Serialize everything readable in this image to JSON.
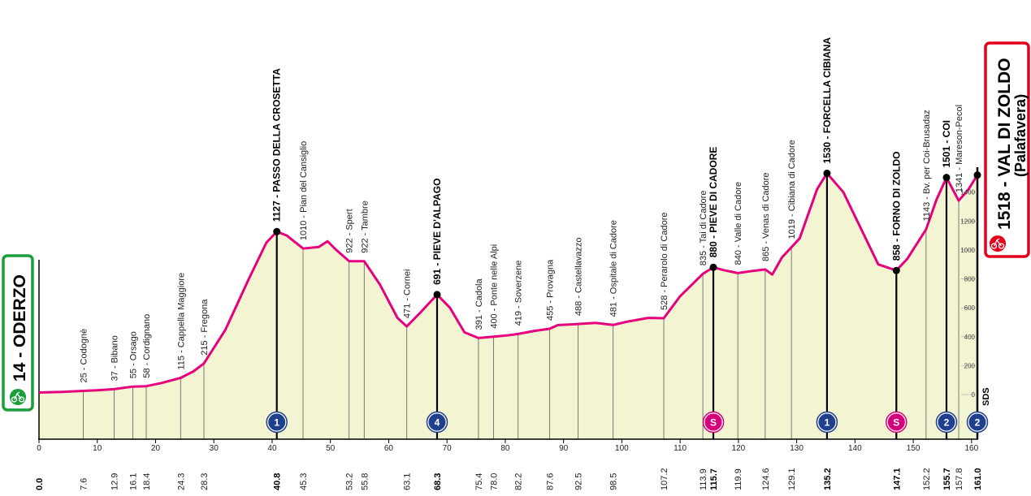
{
  "colors": {
    "profile_line": "#e6007e",
    "profile_fill": "#f3f5d2",
    "start_border": "#1a9e3a",
    "finish_border": "#e2001a",
    "kom_badge": "#1f3f8f",
    "sprint_badge": "#d6007a",
    "axis": "#000000"
  },
  "chart_data": {
    "type": "area",
    "xlabel": "",
    "ylabel": "",
    "xlim": [
      0,
      161
    ],
    "ylim": [
      -150,
      1650
    ],
    "x_ticks": [
      0,
      10,
      20,
      30,
      40,
      50,
      60,
      70,
      80,
      90,
      100,
      110,
      120,
      130,
      140,
      150,
      160
    ],
    "alt_ticks": [
      0,
      200,
      400,
      600,
      800,
      1000,
      1200,
      1400
    ],
    "profile": [
      {
        "x": 0,
        "y": 14
      },
      {
        "x": 4,
        "y": 18
      },
      {
        "x": 7.6,
        "y": 25
      },
      {
        "x": 10,
        "y": 30
      },
      {
        "x": 12.9,
        "y": 37
      },
      {
        "x": 16.1,
        "y": 55
      },
      {
        "x": 18.4,
        "y": 58
      },
      {
        "x": 21,
        "y": 80
      },
      {
        "x": 24.3,
        "y": 115
      },
      {
        "x": 26.5,
        "y": 160
      },
      {
        "x": 28.3,
        "y": 215
      },
      {
        "x": 32,
        "y": 450
      },
      {
        "x": 36,
        "y": 800
      },
      {
        "x": 39,
        "y": 1050
      },
      {
        "x": 40.8,
        "y": 1127
      },
      {
        "x": 42.5,
        "y": 1100
      },
      {
        "x": 45.3,
        "y": 1010
      },
      {
        "x": 48,
        "y": 1020
      },
      {
        "x": 49.5,
        "y": 1060
      },
      {
        "x": 51,
        "y": 1000
      },
      {
        "x": 53.2,
        "y": 922
      },
      {
        "x": 55.8,
        "y": 922
      },
      {
        "x": 58.5,
        "y": 760
      },
      {
        "x": 61.5,
        "y": 530
      },
      {
        "x": 63.1,
        "y": 471
      },
      {
        "x": 65.5,
        "y": 570
      },
      {
        "x": 68.3,
        "y": 691
      },
      {
        "x": 70.5,
        "y": 600
      },
      {
        "x": 73,
        "y": 430
      },
      {
        "x": 75.4,
        "y": 391
      },
      {
        "x": 78,
        "y": 400
      },
      {
        "x": 80.5,
        "y": 410
      },
      {
        "x": 82.2,
        "y": 419
      },
      {
        "x": 85,
        "y": 440
      },
      {
        "x": 87.6,
        "y": 455
      },
      {
        "x": 89,
        "y": 480
      },
      {
        "x": 92.5,
        "y": 488
      },
      {
        "x": 95.5,
        "y": 495
      },
      {
        "x": 98.5,
        "y": 481
      },
      {
        "x": 101,
        "y": 505
      },
      {
        "x": 104.5,
        "y": 530
      },
      {
        "x": 107.2,
        "y": 528
      },
      {
        "x": 110,
        "y": 680
      },
      {
        "x": 113.9,
        "y": 835
      },
      {
        "x": 115.7,
        "y": 880
      },
      {
        "x": 117.5,
        "y": 860
      },
      {
        "x": 119.9,
        "y": 840
      },
      {
        "x": 122.5,
        "y": 855
      },
      {
        "x": 124.6,
        "y": 865
      },
      {
        "x": 125.8,
        "y": 830
      },
      {
        "x": 127.5,
        "y": 950
      },
      {
        "x": 129.1,
        "y": 1019
      },
      {
        "x": 130.5,
        "y": 1080
      },
      {
        "x": 133.5,
        "y": 1420
      },
      {
        "x": 135.2,
        "y": 1530
      },
      {
        "x": 138,
        "y": 1400
      },
      {
        "x": 141,
        "y": 1150
      },
      {
        "x": 144,
        "y": 900
      },
      {
        "x": 147.1,
        "y": 858
      },
      {
        "x": 149,
        "y": 940
      },
      {
        "x": 152.2,
        "y": 1143
      },
      {
        "x": 154,
        "y": 1350
      },
      {
        "x": 155.7,
        "y": 1501
      },
      {
        "x": 157.8,
        "y": 1341
      },
      {
        "x": 159.5,
        "y": 1420
      },
      {
        "x": 161,
        "y": 1518
      }
    ],
    "waypoints": [
      {
        "km": "7.6",
        "x": 7.6,
        "y": 25,
        "label": "25 - Codognè",
        "major": false
      },
      {
        "km": "12.9",
        "x": 12.9,
        "y": 37,
        "label": "37 - Bibano",
        "major": false
      },
      {
        "km": "16.1",
        "x": 16.1,
        "y": 55,
        "label": "55 - Orsago",
        "major": false
      },
      {
        "km": "18.4",
        "x": 18.4,
        "y": 58,
        "label": "58 - Cordignano",
        "major": false
      },
      {
        "km": "24.3",
        "x": 24.3,
        "y": 115,
        "label": "115 - Cappella Maggiore",
        "major": false
      },
      {
        "km": "28.3",
        "x": 28.3,
        "y": 215,
        "label": "215 - Fregona",
        "major": false
      },
      {
        "km": "40.8",
        "x": 40.8,
        "y": 1127,
        "label": "1127 - PASSO DELLA CROSETTA",
        "major": true
      },
      {
        "km": "45.3",
        "x": 45.3,
        "y": 1010,
        "label": "1010 - Pian del Cansiglio",
        "major": false
      },
      {
        "km": "53.2",
        "x": 53.2,
        "y": 922,
        "label": "922 - Spert",
        "major": false
      },
      {
        "km": "55.8",
        "x": 55.8,
        "y": 922,
        "label": "922 - Tambre",
        "major": false
      },
      {
        "km": "63.1",
        "x": 63.1,
        "y": 471,
        "label": "471 - Cornei",
        "major": false
      },
      {
        "km": "68.3",
        "x": 68.3,
        "y": 691,
        "label": "691 - PIEVE D'ALPAGO",
        "major": true
      },
      {
        "km": "75.4",
        "x": 75.4,
        "y": 391,
        "label": "391 - Cadola",
        "major": false
      },
      {
        "km": "78.0",
        "x": 78.0,
        "y": 400,
        "label": "400 - Ponte nelle Alpi",
        "major": false
      },
      {
        "km": "82.2",
        "x": 82.2,
        "y": 419,
        "label": "419 - Soverzene",
        "major": false
      },
      {
        "km": "87.6",
        "x": 87.6,
        "y": 455,
        "label": "455 - Provagna",
        "major": false
      },
      {
        "km": "92.5",
        "x": 92.5,
        "y": 488,
        "label": "488 - Castellavazzo",
        "major": false
      },
      {
        "km": "98.5",
        "x": 98.5,
        "y": 481,
        "label": "481 - Ospitale di Cadore",
        "major": false
      },
      {
        "km": "107.2",
        "x": 107.2,
        "y": 528,
        "label": "528 - Perarolo di Cadore",
        "major": false
      },
      {
        "km": "113.9",
        "x": 113.9,
        "y": 835,
        "label": "835 - Tai di Cadore",
        "major": false
      },
      {
        "km": "115.7",
        "x": 115.7,
        "y": 880,
        "label": "880 - PIEVE DI CADORE",
        "major": true
      },
      {
        "km": "119.9",
        "x": 119.9,
        "y": 840,
        "label": "840 - Valle di Cadore",
        "major": false
      },
      {
        "km": "124.6",
        "x": 124.6,
        "y": 865,
        "label": "865 - Venas di Cadore",
        "major": false
      },
      {
        "km": "129.1",
        "x": 129.1,
        "y": 1019,
        "label": "1019 - Cibiana di Cadore",
        "major": false
      },
      {
        "km": "135.2",
        "x": 135.2,
        "y": 1530,
        "label": "1530 - FORCELLA CIBIANA",
        "major": true
      },
      {
        "km": "147.1",
        "x": 147.1,
        "y": 858,
        "label": "858 - FORNO DI ZOLDO",
        "major": true
      },
      {
        "km": "152.2",
        "x": 152.2,
        "y": 1143,
        "label": "1143 - Bv. per Coi-Brusadaz",
        "major": false
      },
      {
        "km": "155.7",
        "x": 155.7,
        "y": 1501,
        "label": "1501 - COI",
        "major": true
      },
      {
        "km": "157.8",
        "x": 157.8,
        "y": 1341,
        "label": "1341 - Mareson-Pecol",
        "major": false
      }
    ],
    "markers": [
      {
        "x": 40.8,
        "kind": "kom",
        "text": "1"
      },
      {
        "x": 68.3,
        "kind": "kom",
        "text": "4"
      },
      {
        "x": 115.7,
        "kind": "sprint",
        "text": "S"
      },
      {
        "x": 135.2,
        "kind": "kom",
        "text": "1"
      },
      {
        "x": 147.1,
        "kind": "sprint",
        "text": "S"
      },
      {
        "x": 155.7,
        "kind": "kom",
        "text": "2"
      },
      {
        "x": 161.0,
        "kind": "kom",
        "text": "2"
      }
    ],
    "start": {
      "alt": "14",
      "name": "ODERZO",
      "km": "0.0"
    },
    "finish": {
      "alt": "1518",
      "name": "VAL DI ZOLDO",
      "subname": "(Palafavera)",
      "km": "161.0"
    },
    "sds_label": "SDS"
  }
}
